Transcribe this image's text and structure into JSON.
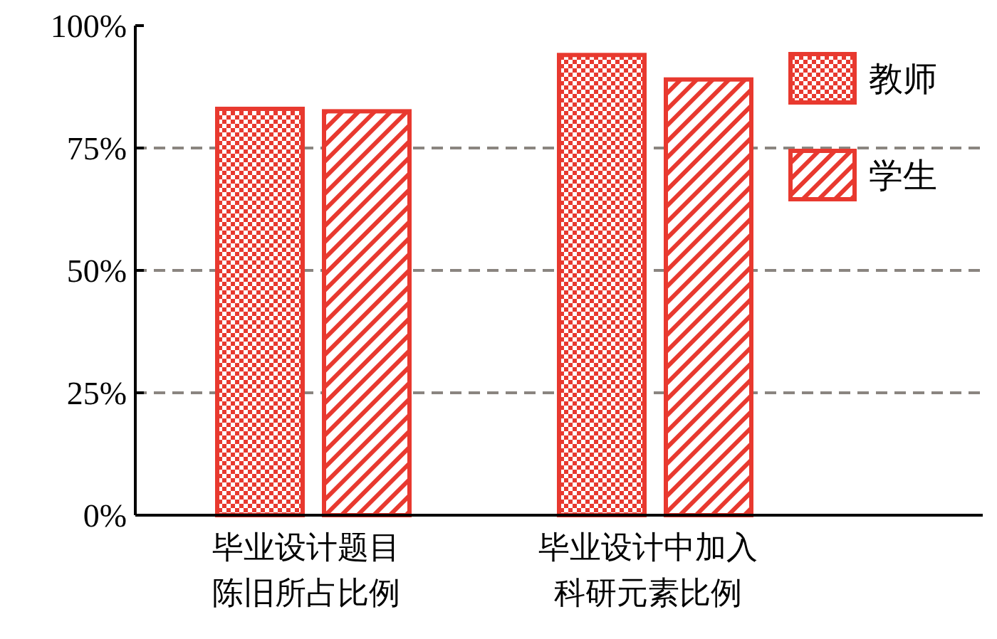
{
  "chart_data": {
    "type": "bar",
    "categories": [
      "毕业设计题目陈旧所占比例",
      "毕业设计中加入科研元素比例"
    ],
    "series": [
      {
        "name": "教师",
        "color": "#e8392f",
        "values": [
          83,
          94
        ]
      },
      {
        "name": "学生",
        "color": "#e8392f",
        "values": [
          82.5,
          89
        ]
      }
    ],
    "ylim": [
      0,
      100
    ],
    "yticks": [
      {
        "value": 0,
        "label": "0%"
      },
      {
        "value": 25,
        "label": "25%"
      },
      {
        "value": 50,
        "label": "50%"
      },
      {
        "value": 75,
        "label": "75%"
      },
      {
        "value": 100,
        "label": "100%"
      }
    ],
    "grid": "y",
    "legend": "top right"
  }
}
